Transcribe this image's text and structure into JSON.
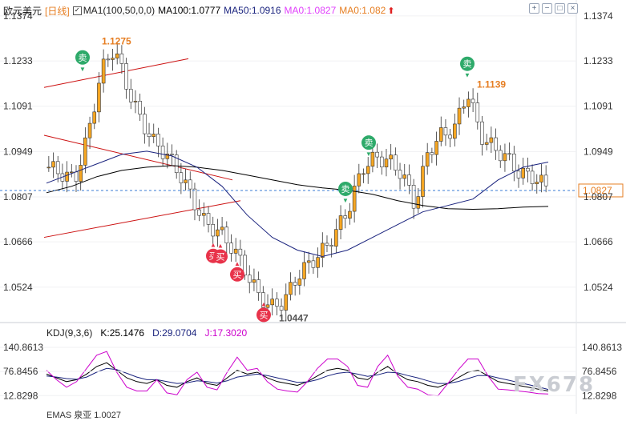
{
  "header": {
    "instrument": "欧元美元",
    "period": "[日线]",
    "ma_toggle_icon": "checkbox-icon",
    "ma1_label": "MA1(100,50,0,0)",
    "ma100_label": "MA100:1.0777",
    "ma50_label": "MA50:1.0916",
    "ma0a_label": "MA0:1.0827",
    "ma0b_label": "MA0:1.082",
    "arrow_icon": "up-arrow-icon",
    "colors": {
      "ma100": "#000000",
      "ma50": "#1a237e",
      "ma0a": "#e040fb",
      "ma0b": "#e67e22",
      "period": "#e67e22"
    }
  },
  "toolbar": {
    "buttons": [
      {
        "name": "add-indicator-button",
        "icon": "plus-box-icon",
        "glyph": "+"
      },
      {
        "name": "minimize-button",
        "icon": "minus-box-icon",
        "glyph": "−"
      },
      {
        "name": "maximize-button",
        "icon": "restore-box-icon",
        "glyph": "□"
      },
      {
        "name": "close-button",
        "icon": "close-box-icon",
        "glyph": "×"
      }
    ]
  },
  "kdj": {
    "title": "KDJ(9,3,6)",
    "k_label": "K:25.1476",
    "d_label": "D:29.0704",
    "j_label": "J:17.3020",
    "colors": {
      "k": "#000000",
      "d": "#1a237e",
      "j": "#cc00cc"
    }
  },
  "footer": {
    "partial_text": "EMAS  泉亚  1.0027"
  },
  "watermark": "FX678",
  "chart_data": [
    {
      "type": "candlestick",
      "title": "欧元美元 [日线]",
      "price_axis_ticks": [
        "1.1374",
        "1.1233",
        "1.1091",
        "1.0949",
        "1.0807",
        "1.0666",
        "1.0524"
      ],
      "ylim": [
        1.0413,
        1.1424
      ],
      "current_price": "1.0827",
      "annotations": [
        {
          "text": "1.1275",
          "kind": "high",
          "value": 1.1275
        },
        {
          "text": "1.1139",
          "kind": "high",
          "value": 1.1139
        },
        {
          "text": "1.0447",
          "kind": "low",
          "value": 1.0447
        }
      ],
      "signals": [
        {
          "text": "卖",
          "type": "sell",
          "price": 1.1244
        },
        {
          "text": "卖",
          "type": "sell",
          "price": 1.0977
        },
        {
          "text": "卖",
          "type": "sell",
          "price": 1.0832
        },
        {
          "text": "卖",
          "type": "sell",
          "price": 1.1224
        },
        {
          "text": "买",
          "type": "buy",
          "price": 1.0622
        },
        {
          "text": "买",
          "type": "buy",
          "price": 1.062
        },
        {
          "text": "买",
          "type": "buy",
          "price": 1.0564
        },
        {
          "text": "买",
          "type": "buy",
          "price": 1.0437
        }
      ],
      "series": [
        {
          "name": "MA100",
          "value": "1.0777",
          "color": "#000000",
          "values": [
            1.082,
            1.084,
            1.087,
            1.089,
            1.09,
            1.0905,
            1.09,
            1.089,
            1.0875,
            1.086,
            1.0845,
            1.0835,
            1.0828,
            1.0815,
            1.0795,
            1.078,
            1.077,
            1.0768,
            1.077,
            1.0775,
            1.0777
          ]
        },
        {
          "name": "MA50",
          "value": "1.0916",
          "color": "#1a237e",
          "values": [
            1.085,
            1.088,
            1.091,
            1.094,
            1.095,
            1.0935,
            1.09,
            1.084,
            1.075,
            1.068,
            1.064,
            1.062,
            1.064,
            1.068,
            1.072,
            1.076,
            1.078,
            1.08,
            1.086,
            1.09,
            1.0916
          ]
        }
      ],
      "trendlines": [
        {
          "from": 1.115,
          "to": 1.124,
          "color": "#cc1111"
        },
        {
          "from": 1.1,
          "to": 1.086,
          "color": "#cc1111"
        },
        {
          "from": 1.068,
          "to": 1.0795,
          "color": "#cc1111"
        }
      ],
      "candles": {
        "up_color": "#f5a623",
        "down_color": "#ffffff",
        "outline": "#333333"
      }
    },
    {
      "type": "line",
      "title": "KDJ(9,3,6)",
      "y_ticks": [
        "140.8613",
        "76.8456",
        "12.8298"
      ],
      "ylim": [
        -10,
        160
      ],
      "series": [
        {
          "name": "K",
          "value": "25.1476",
          "color": "#000000",
          "values": [
            70,
            60,
            50,
            55,
            70,
            90,
            100,
            80,
            60,
            50,
            45,
            55,
            40,
            35,
            50,
            60,
            45,
            40,
            60,
            80,
            70,
            75,
            60,
            50,
            45,
            40,
            50,
            65,
            80,
            85,
            80,
            60,
            55,
            75,
            90,
            70,
            55,
            50,
            40,
            35,
            45,
            60,
            75,
            80,
            65,
            50,
            45,
            40,
            35,
            30,
            25
          ]
        },
        {
          "name": "D",
          "value": "29.0704",
          "color": "#1a237e",
          "values": [
            65,
            62,
            58,
            56,
            62,
            75,
            85,
            82,
            72,
            62,
            55,
            55,
            50,
            45,
            47,
            52,
            50,
            46,
            52,
            62,
            66,
            70,
            66,
            60,
            54,
            48,
            49,
            55,
            65,
            72,
            75,
            70,
            64,
            68,
            75,
            73,
            66,
            60,
            52,
            45,
            45,
            50,
            58,
            66,
            66,
            60,
            54,
            48,
            42,
            36,
            29
          ]
        },
        {
          "name": "J",
          "value": "17.3020",
          "color": "#cc00cc",
          "values": [
            80,
            55,
            35,
            50,
            85,
            120,
            130,
            75,
            35,
            25,
            25,
            55,
            20,
            15,
            55,
            75,
            35,
            28,
            75,
            115,
            80,
            85,
            50,
            30,
            25,
            22,
            50,
            85,
            110,
            110,
            90,
            40,
            35,
            90,
            120,
            65,
            35,
            30,
            15,
            12,
            45,
            80,
            110,
            110,
            65,
            30,
            28,
            25,
            22,
            18,
            17
          ]
        }
      ]
    }
  ]
}
